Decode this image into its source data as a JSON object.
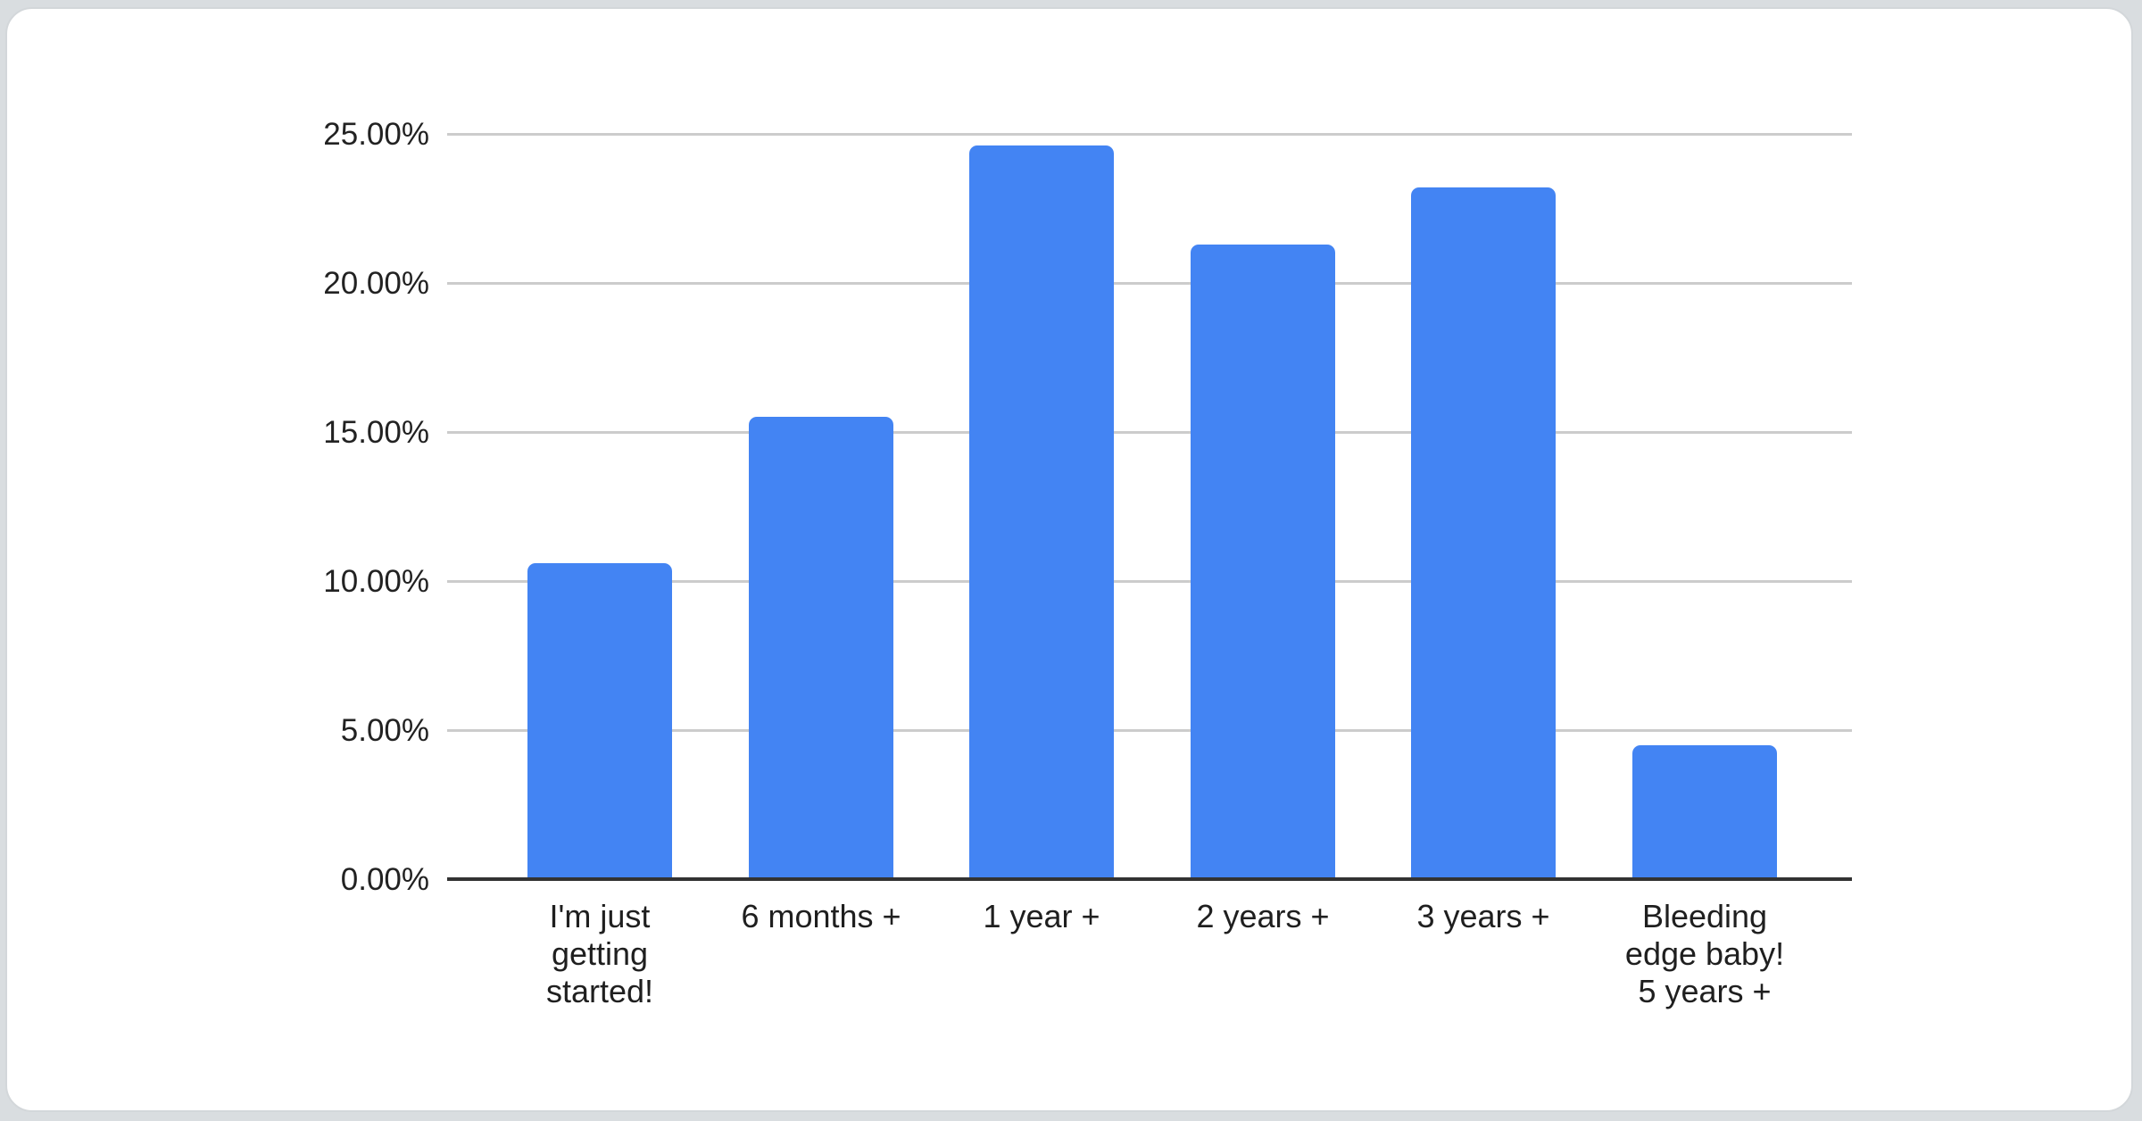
{
  "chart_data": {
    "type": "bar",
    "categories": [
      "I'm just getting started!",
      "6 months +",
      "1 year +",
      "2 years +",
      "3 years +",
      "Bleeding edge baby! 5 years +"
    ],
    "category_label_lines": [
      [
        "I'm just",
        "getting",
        "started!"
      ],
      [
        "6 months +"
      ],
      [
        "1 year +"
      ],
      [
        "2 years +"
      ],
      [
        "3 years +"
      ],
      [
        "Bleeding",
        "edge baby!",
        "5 years +"
      ]
    ],
    "values": [
      10.6,
      15.5,
      24.6,
      21.3,
      23.2,
      4.5
    ],
    "series_name": "",
    "ylim": [
      0,
      25
    ],
    "y_ticks": [
      {
        "value": 0,
        "label": "0.00%"
      },
      {
        "value": 5,
        "label": "5.00%"
      },
      {
        "value": 10,
        "label": "10.00%"
      },
      {
        "value": 15,
        "label": "15.00%"
      },
      {
        "value": 20,
        "label": "20.00%"
      },
      {
        "value": 25,
        "label": "25.00%"
      }
    ],
    "grid": true,
    "legend_position": "none",
    "colors": {
      "bar": "#4384f3",
      "gridline": "#cccccc",
      "axis": "#333333",
      "tick_text": "#222222",
      "page_background": "#d9dde0",
      "card_background": "#ffffff",
      "card_border": "#d3d7da"
    }
  }
}
